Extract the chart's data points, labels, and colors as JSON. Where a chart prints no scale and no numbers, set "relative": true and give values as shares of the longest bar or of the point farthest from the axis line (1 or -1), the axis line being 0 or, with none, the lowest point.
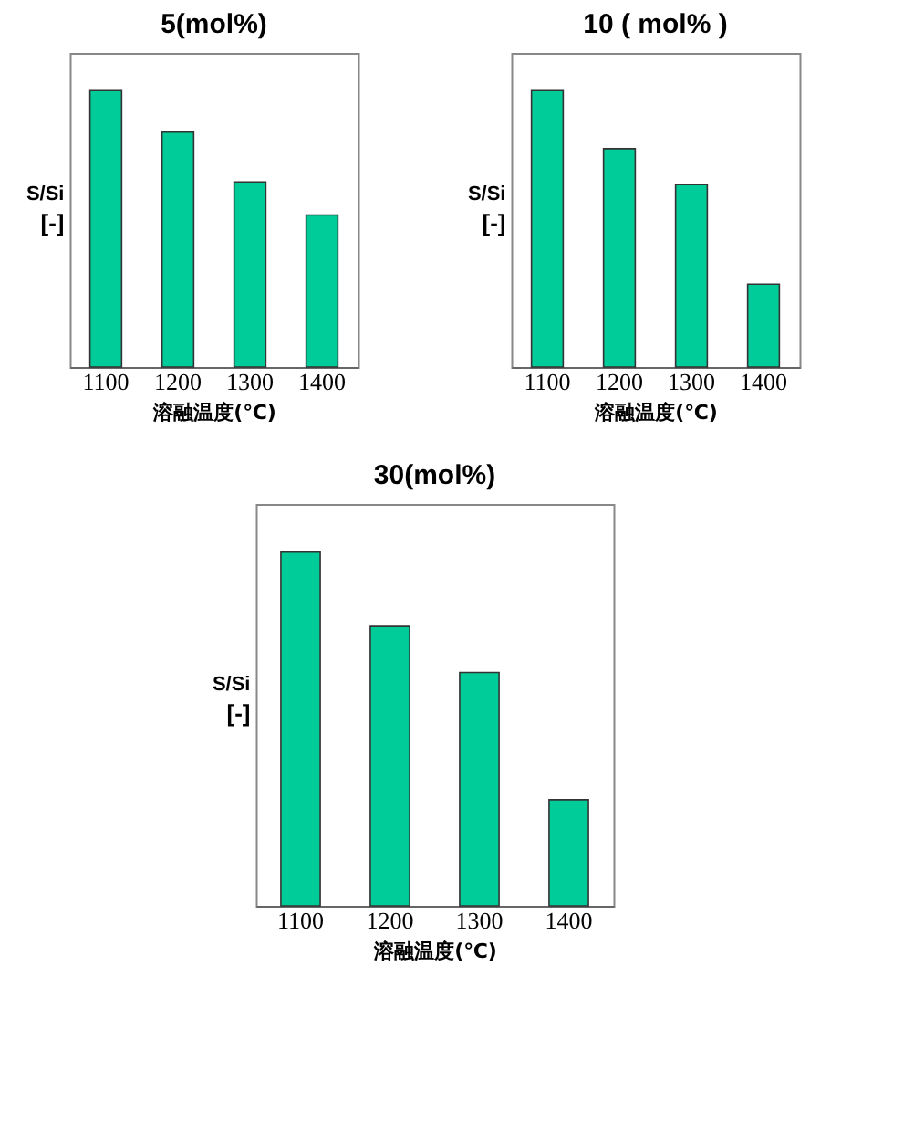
{
  "chart_data": [
    {
      "type": "bar",
      "title": "5(mol%)",
      "xlabel": "溶融温度(℃)",
      "ylabel": "S/Si\n[-]",
      "relative": true,
      "categories": [
        "1100",
        "1200",
        "1300",
        "1400"
      ],
      "values": [
        1,
        0.85,
        0.67,
        0.55
      ],
      "color": "#00cc99",
      "grid": false
    },
    {
      "type": "bar",
      "title": "10 ( mol% )",
      "xlabel": "溶融温度(℃)",
      "ylabel": "S/Si\n[-]",
      "relative": true,
      "categories": [
        "1100",
        "1200",
        "1300",
        "1400"
      ],
      "values": [
        1,
        0.79,
        0.66,
        0.3
      ],
      "color": "#00cc99",
      "grid": false
    },
    {
      "type": "bar",
      "title": "30(mol%)",
      "xlabel": "溶融温度(℃)",
      "ylabel": "S/Si\n[-]",
      "relative": true,
      "categories": [
        "1100",
        "1200",
        "1300",
        "1400"
      ],
      "values": [
        1,
        0.79,
        0.66,
        0.3
      ],
      "color": "#00cc99",
      "grid": false
    }
  ]
}
